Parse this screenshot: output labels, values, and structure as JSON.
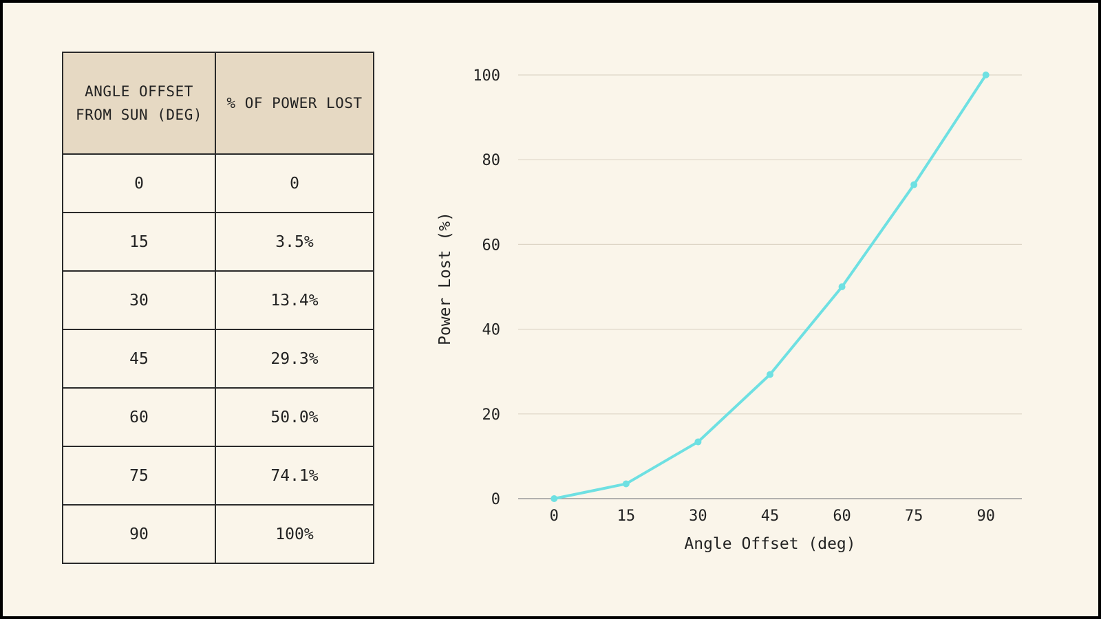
{
  "table": {
    "headers": [
      "ANGLE OFFSET FROM SUN (DEG)",
      "% OF POWER LOST"
    ],
    "rows": [
      [
        "0",
        "0"
      ],
      [
        "15",
        "3.5%"
      ],
      [
        "30",
        "13.4%"
      ],
      [
        "45",
        "29.3%"
      ],
      [
        "60",
        "50.0%"
      ],
      [
        "75",
        "74.1%"
      ],
      [
        "90",
        "100%"
      ]
    ]
  },
  "chart_data": {
    "type": "line",
    "title": "",
    "xlabel": "Angle Offset (deg)",
    "ylabel": "Power Lost (%)",
    "x": [
      0,
      15,
      30,
      45,
      60,
      75,
      90
    ],
    "series": [
      {
        "name": "Power Lost",
        "values": [
          0,
          3.5,
          13.4,
          29.3,
          50.0,
          74.1,
          100
        ]
      }
    ],
    "xticks": [
      0,
      15,
      30,
      45,
      60,
      75,
      90
    ],
    "yticks": [
      0,
      20,
      40,
      60,
      80,
      100
    ],
    "xlim": [
      -7.5,
      97.5
    ],
    "ylim": [
      0,
      100
    ],
    "grid": true,
    "line_color": "#6EE0E2",
    "grid_color": "#DDD5C6",
    "axis_color": "#999999"
  }
}
